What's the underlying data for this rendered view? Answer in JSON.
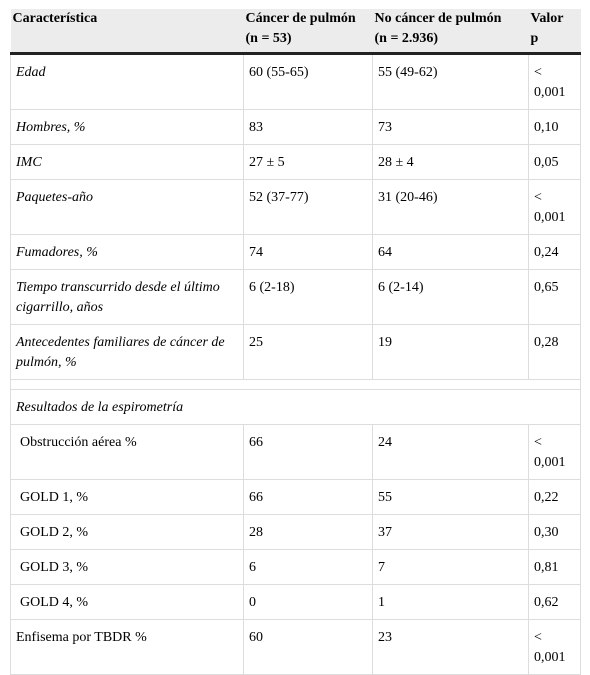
{
  "table": {
    "header": [
      [
        "Característica"
      ],
      [
        "Cáncer de pulmón",
        "(n = 53)"
      ],
      [
        "No cáncer de pulmón",
        "(n = 2.936)"
      ],
      [
        "Valor",
        "p"
      ]
    ],
    "rows": [
      [
        "Edad",
        "60 (55-65)",
        "55 (49-62)",
        "< 0,001"
      ],
      [
        "Hombres, %",
        "83",
        "73",
        "0,10"
      ],
      [
        "IMC",
        "27 ± 5",
        "28 ± 4",
        "0,05"
      ],
      [
        "Paquetes-año",
        "52 (37-77)",
        "31 (20-46)",
        "< 0,001"
      ],
      [
        "Fumadores, %",
        "74",
        "64",
        "0,24"
      ],
      [
        "Tiempo transcurrido desde el último cigarrillo, años",
        "6 (2-18)",
        "6 (2-14)",
        "0,65"
      ],
      [
        "Antecedentes familiares de cáncer de pulmón, %",
        "25",
        "19",
        "0,28"
      ]
    ],
    "section": {
      "title": "Resultados de la espirometría",
      "rows": [
        [
          "Obstrucción aérea %",
          "66",
          "24",
          "< 0,001"
        ],
        [
          "GOLD 1, %",
          "66",
          "55",
          "0,22"
        ],
        [
          "GOLD 2, %",
          "28",
          "37",
          "0,30"
        ],
        [
          "GOLD 3, %",
          "6",
          "7",
          "0,81"
        ],
        [
          "GOLD 4, %",
          "0",
          "1",
          "0,62"
        ],
        [
          "Enfisema por TBDR %",
          "60",
          "23",
          "< 0,001"
        ]
      ]
    }
  }
}
